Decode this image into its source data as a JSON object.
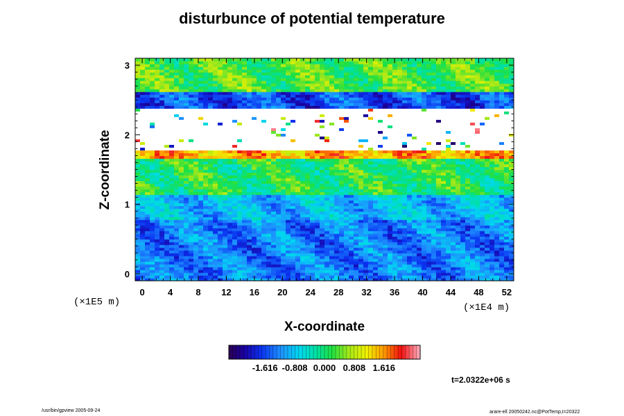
{
  "chart_data": {
    "type": "heatmap",
    "title": "disturbunce of potential temperature",
    "xlabel": "X-coordinate",
    "ylabel": "Z-coordinate",
    "x_scale_label": "(×1E4 m)",
    "y_scale_label": "(×1E5 m)",
    "x_ticks": [
      "0",
      "4",
      "8",
      "12",
      "16",
      "20",
      "24",
      "28",
      "32",
      "36",
      "40",
      "44",
      "48",
      "52"
    ],
    "y_ticks": [
      "0",
      "1",
      "2",
      "3"
    ],
    "xlim": [
      -1,
      53
    ],
    "ylim": [
      -0.1,
      3.1
    ],
    "colorbar": {
      "tick_labels": [
        "-1.616",
        "-0.808",
        "0.000",
        "0.808",
        "1.616"
      ],
      "tick_values": [
        -1.616,
        -0.808,
        0.0,
        0.808,
        1.616
      ],
      "range": [
        -2.6,
        2.6
      ]
    },
    "layers": [
      {
        "z": [
          -0.1,
          0.78
        ],
        "level": -1.3
      },
      {
        "z": [
          0.78,
          1.15
        ],
        "level": -0.9
      },
      {
        "z": [
          1.15,
          1.65
        ],
        "level": 0.1
      },
      {
        "z": [
          1.65,
          1.77
        ],
        "level": 1.5
      },
      {
        "z": [
          1.77,
          2.4
        ],
        "level": null
      },
      {
        "z": [
          2.4,
          2.62
        ],
        "level": -1.6
      },
      {
        "z": [
          2.62,
          3.1
        ],
        "level": 0.3
      }
    ],
    "time_label": "t=2.0322e+06 s",
    "footer_left": "/usr/bin/gpview 2005-09-24",
    "footer_right": "arare-ell 20050242.nc@PotTemp,t=20322"
  }
}
